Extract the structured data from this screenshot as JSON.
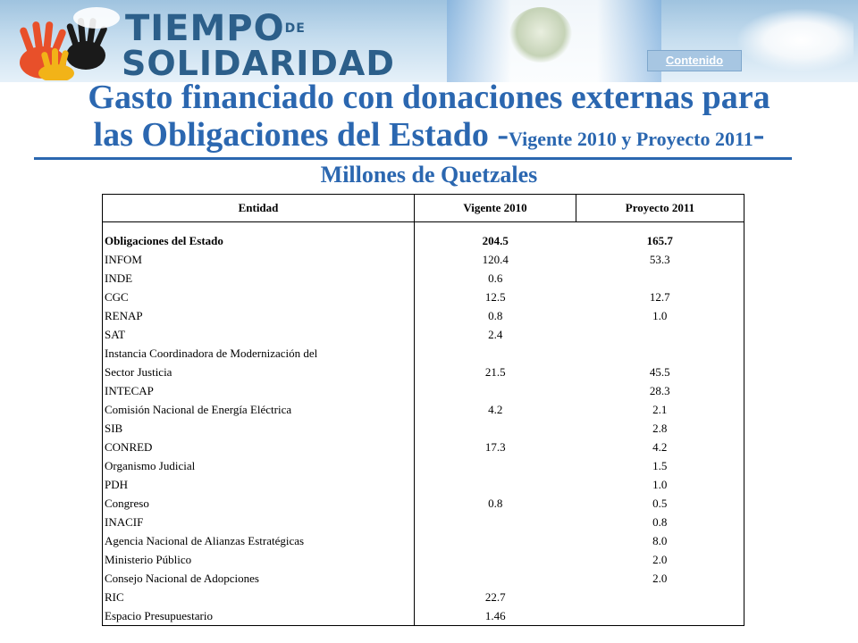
{
  "header": {
    "logo_line1": "TIEMPO",
    "logo_de": "DE",
    "logo_line2": "SOLIDARIDAD",
    "nav_button": "Contenido"
  },
  "title": {
    "line1": "Gasto financiado con donaciones externas para",
    "line2_main": "las Obligaciones del Estado",
    "line2_dash_open": " -",
    "line2_sub": "Vigente 2010 y Proyecto 2011",
    "line2_dash_close": "-"
  },
  "units": "Millones de Quetzales",
  "table": {
    "headers": [
      "Entidad",
      "Vigente 2010",
      "Proyecto 2011"
    ],
    "rows": [
      {
        "entidad": "Obligaciones del Estado",
        "vigente": "204.5",
        "proyecto": "165.7",
        "bold": true
      },
      {
        "entidad": "INFOM",
        "vigente": "120.4",
        "proyecto": "53.3"
      },
      {
        "entidad": "INDE",
        "vigente": "0.6",
        "proyecto": ""
      },
      {
        "entidad": "CGC",
        "vigente": "12.5",
        "proyecto": "12.7"
      },
      {
        "entidad": "RENAP",
        "vigente": "0.8",
        "proyecto": "1.0"
      },
      {
        "entidad": "SAT",
        "vigente": "2.4",
        "proyecto": ""
      },
      {
        "entidad": "Instancia Coordinadora de Modernización del",
        "vigente": "",
        "proyecto": ""
      },
      {
        "entidad": "Sector Justicia",
        "vigente": "21.5",
        "proyecto": "45.5"
      },
      {
        "entidad": "INTECAP",
        "vigente": "",
        "proyecto": "28.3"
      },
      {
        "entidad": "Comisión Nacional de Energía Eléctrica",
        "vigente": "4.2",
        "proyecto": "2.1"
      },
      {
        "entidad": "SIB",
        "vigente": "",
        "proyecto": "2.8"
      },
      {
        "entidad": "CONRED",
        "vigente": "17.3",
        "proyecto": "4.2"
      },
      {
        "entidad": "Organismo Judicial",
        "vigente": "",
        "proyecto": "1.5"
      },
      {
        "entidad": "PDH",
        "vigente": "",
        "proyecto": "1.0"
      },
      {
        "entidad": "Congreso",
        "vigente": "0.8",
        "proyecto": "0.5"
      },
      {
        "entidad": "INACIF",
        "vigente": "",
        "proyecto": "0.8"
      },
      {
        "entidad": "Agencia Nacional de Alianzas Estratégicas",
        "vigente": "",
        "proyecto": "8.0"
      },
      {
        "entidad": "Ministerio Público",
        "vigente": "",
        "proyecto": "2.0"
      },
      {
        "entidad": "Consejo Nacional de Adopciones",
        "vigente": "",
        "proyecto": "2.0"
      },
      {
        "entidad": "RIC",
        "vigente": "22.7",
        "proyecto": ""
      },
      {
        "entidad": "Espacio Presupuestario",
        "vigente": "1.46",
        "proyecto": ""
      }
    ]
  },
  "colors": {
    "title_blue": "#2b67b0",
    "logo_blue": "#2c5f8a",
    "hand_orange": "#e8502a",
    "hand_yellow": "#f2b318",
    "hand_black": "#1a1a1a"
  }
}
